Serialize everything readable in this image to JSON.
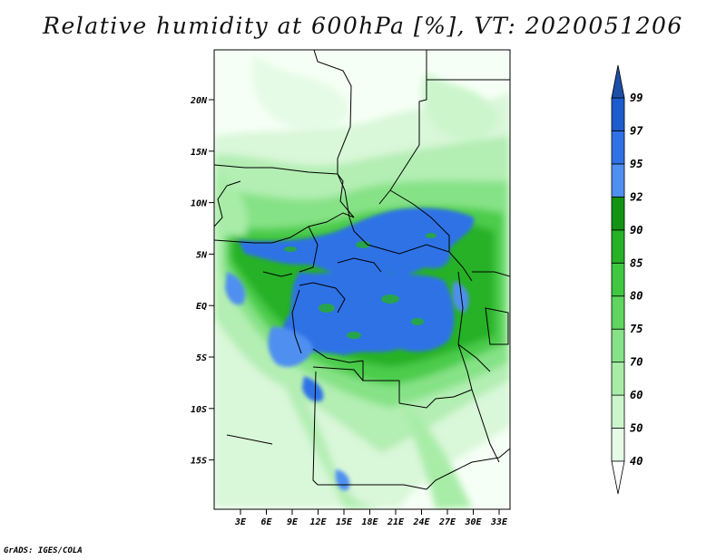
{
  "title": "Relative humidity at 600hPa [%], VT: 2020051206",
  "credit": "GrADS: IGES/COLA",
  "map": {
    "lat_ticks": [
      "20N",
      "15N",
      "10N",
      "5N",
      "EQ",
      "5S",
      "10S",
      "15S"
    ],
    "lon_ticks": [
      "3E",
      "6E",
      "9E",
      "12E",
      "15E",
      "18E",
      "21E",
      "24E",
      "27E",
      "30E",
      "33E"
    ]
  },
  "colorbar": {
    "labels": [
      "40",
      "50",
      "60",
      "70",
      "75",
      "80",
      "85",
      "90",
      "92",
      "95",
      "97",
      "99"
    ],
    "colors": [
      "#ffffff",
      "#e6fbe6",
      "#ccf5cc",
      "#a8eca8",
      "#86e286",
      "#5fd65f",
      "#3fc83f",
      "#26b126",
      "#139313",
      "#4f8ff0",
      "#2f72e6",
      "#1c5ccd",
      "#1e4fa8"
    ]
  }
}
